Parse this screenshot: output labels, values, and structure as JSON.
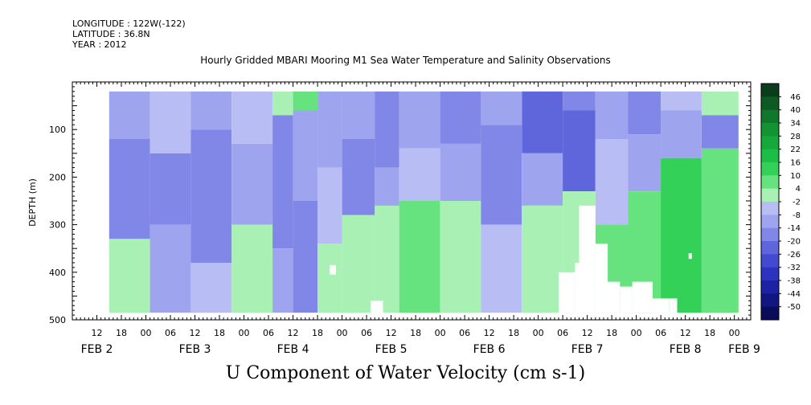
{
  "header": {
    "longitude": "LONGITUDE : 122W(-122)",
    "latitude": "LATITUDE : 36.8N",
    "year": "YEAR : 2012"
  },
  "chart_data": {
    "type": "heatmap",
    "title": "Hourly Gridded MBARI Mooring M1 Sea Water Temperature and Salinity Observations",
    "bottom_title": "U Component of Water Velocity (cm s-1)",
    "ylabel": "DEPTH (m)",
    "xlabel": "",
    "ylim": [
      500,
      0
    ],
    "y_ticks": [
      "100",
      "200",
      "300",
      "400",
      "500"
    ],
    "y_tick_values": [
      100,
      200,
      300,
      400,
      500
    ],
    "x_range_hours": [
      6,
      172
    ],
    "x_hour_ticks": [
      {
        "h": 12,
        "label": "12"
      },
      {
        "h": 18,
        "label": "18"
      },
      {
        "h": 24,
        "label": "00"
      },
      {
        "h": 30,
        "label": "06"
      },
      {
        "h": 36,
        "label": "12"
      },
      {
        "h": 42,
        "label": "18"
      },
      {
        "h": 48,
        "label": "00"
      },
      {
        "h": 54,
        "label": "06"
      },
      {
        "h": 60,
        "label": "12"
      },
      {
        "h": 66,
        "label": "18"
      },
      {
        "h": 72,
        "label": "00"
      },
      {
        "h": 78,
        "label": "06"
      },
      {
        "h": 84,
        "label": "12"
      },
      {
        "h": 90,
        "label": "18"
      },
      {
        "h": 96,
        "label": "00"
      },
      {
        "h": 102,
        "label": "06"
      },
      {
        "h": 108,
        "label": "12"
      },
      {
        "h": 114,
        "label": "18"
      },
      {
        "h": 120,
        "label": "00"
      },
      {
        "h": 126,
        "label": "06"
      },
      {
        "h": 132,
        "label": "12"
      },
      {
        "h": 138,
        "label": "18"
      },
      {
        "h": 144,
        "label": "00"
      },
      {
        "h": 150,
        "label": "06"
      },
      {
        "h": 156,
        "label": "12"
      },
      {
        "h": 162,
        "label": "18"
      },
      {
        "h": 168,
        "label": "00"
      },
      {
        "h": 174,
        "label": "06"
      }
    ],
    "date_labels": [
      {
        "h": 12,
        "label": "FEB  2"
      },
      {
        "h": 36,
        "label": "FEB  3"
      },
      {
        "h": 60,
        "label": "FEB  4"
      },
      {
        "h": 84,
        "label": "FEB  5"
      },
      {
        "h": 108,
        "label": "FEB  6"
      },
      {
        "h": 132,
        "label": "FEB  7"
      },
      {
        "h": 156,
        "label": "FEB  8"
      },
      {
        "h": 173,
        "label": "FEB  9"
      }
    ],
    "data_hours": [
      15,
      169
    ],
    "data_depth_range": [
      20,
      485
    ],
    "colorbar_labels": [
      "46",
      "40",
      "34",
      "28",
      "22",
      "16",
      "10",
      "4",
      "-2",
      "-8",
      "-14",
      "-20",
      "-26",
      "-32",
      "-38",
      "-44",
      "-50"
    ],
    "colorbar_levels": [
      52,
      46,
      40,
      34,
      28,
      22,
      16,
      10,
      4,
      -2,
      -8,
      -14,
      -20,
      -26,
      -32,
      -38,
      -44,
      -50
    ],
    "colorbar_colors": [
      "#0b3d1b",
      "#0e5a23",
      "#10782b",
      "#139433",
      "#16a83b",
      "#1cbe45",
      "#34d158",
      "#66e27f",
      "#a8f0b4",
      "#b8bdf4",
      "#9ea4ee",
      "#8087e6",
      "#5f66dc",
      "#434ad2",
      "#2c33c0",
      "#1d22a4",
      "#121680",
      "#0a0c5a"
    ],
    "columns": [
      {
        "h": [
          15,
          25
        ],
        "zones": [
          [
            20,
            120,
            -8
          ],
          [
            120,
            330,
            -14
          ],
          [
            330,
            485,
            4
          ]
        ]
      },
      {
        "h": [
          25,
          35
        ],
        "zones": [
          [
            20,
            150,
            -2
          ],
          [
            150,
            300,
            -14
          ],
          [
            300,
            485,
            -8
          ]
        ]
      },
      {
        "h": [
          35,
          45
        ],
        "zones": [
          [
            20,
            100,
            -8
          ],
          [
            100,
            380,
            -14
          ],
          [
            380,
            485,
            -2
          ]
        ]
      },
      {
        "h": [
          45,
          55
        ],
        "zones": [
          [
            20,
            130,
            -2
          ],
          [
            130,
            300,
            -8
          ],
          [
            300,
            485,
            4
          ]
        ]
      },
      {
        "h": [
          55,
          60
        ],
        "zones": [
          [
            20,
            70,
            4
          ],
          [
            70,
            350,
            -14
          ],
          [
            350,
            485,
            -8
          ]
        ]
      },
      {
        "h": [
          60,
          66
        ],
        "zones": [
          [
            20,
            60,
            10
          ],
          [
            60,
            250,
            -8
          ],
          [
            250,
            485,
            -14
          ]
        ]
      },
      {
        "h": [
          66,
          72
        ],
        "zones": [
          [
            20,
            180,
            -8
          ],
          [
            180,
            340,
            -2
          ],
          [
            340,
            485,
            4
          ]
        ]
      },
      {
        "h": [
          72,
          80
        ],
        "zones": [
          [
            20,
            120,
            -8
          ],
          [
            120,
            280,
            -14
          ],
          [
            280,
            485,
            4
          ]
        ]
      },
      {
        "h": [
          80,
          86
        ],
        "zones": [
          [
            20,
            180,
            -14
          ],
          [
            180,
            260,
            -8
          ],
          [
            260,
            485,
            4
          ]
        ]
      },
      {
        "h": [
          86,
          96
        ],
        "zones": [
          [
            20,
            140,
            -8
          ],
          [
            140,
            250,
            -2
          ],
          [
            250,
            485,
            10
          ]
        ]
      },
      {
        "h": [
          96,
          106
        ],
        "zones": [
          [
            20,
            130,
            -14
          ],
          [
            130,
            250,
            -8
          ],
          [
            250,
            485,
            4
          ]
        ]
      },
      {
        "h": [
          106,
          116
        ],
        "zones": [
          [
            20,
            90,
            -8
          ],
          [
            90,
            300,
            -14
          ],
          [
            300,
            485,
            -2
          ]
        ]
      },
      {
        "h": [
          116,
          126
        ],
        "zones": [
          [
            20,
            150,
            -20
          ],
          [
            150,
            260,
            -8
          ],
          [
            260,
            485,
            4
          ]
        ]
      },
      {
        "h": [
          126,
          134
        ],
        "zones": [
          [
            20,
            60,
            -14
          ],
          [
            60,
            230,
            -20
          ],
          [
            230,
            485,
            4
          ]
        ]
      },
      {
        "h": [
          134,
          142
        ],
        "zones": [
          [
            20,
            120,
            -8
          ],
          [
            120,
            300,
            -2
          ],
          [
            300,
            485,
            10
          ]
        ]
      },
      {
        "h": [
          142,
          150
        ],
        "zones": [
          [
            20,
            110,
            -14
          ],
          [
            110,
            230,
            -8
          ],
          [
            230,
            485,
            10
          ]
        ]
      },
      {
        "h": [
          150,
          160
        ],
        "zones": [
          [
            20,
            60,
            -2
          ],
          [
            60,
            160,
            -8
          ],
          [
            160,
            485,
            16
          ]
        ]
      },
      {
        "h": [
          160,
          169
        ],
        "zones": [
          [
            20,
            70,
            4
          ],
          [
            70,
            140,
            -14
          ],
          [
            140,
            485,
            10
          ]
        ]
      }
    ],
    "missing": [
      {
        "h": [
          79,
          82
        ],
        "d": [
          460,
          485
        ]
      },
      {
        "h": [
          125,
          129
        ],
        "d": [
          400,
          485
        ]
      },
      {
        "h": [
          129,
          130
        ],
        "d": [
          380,
          485
        ]
      },
      {
        "h": [
          130,
          134
        ],
        "d": [
          260,
          485
        ]
      },
      {
        "h": [
          134,
          137
        ],
        "d": [
          340,
          485
        ]
      },
      {
        "h": [
          137,
          140
        ],
        "d": [
          420,
          485
        ]
      },
      {
        "h": [
          140,
          143
        ],
        "d": [
          430,
          485
        ]
      },
      {
        "h": [
          143,
          148
        ],
        "d": [
          420,
          485
        ]
      },
      {
        "h": [
          148,
          152
        ],
        "d": [
          455,
          485
        ]
      },
      {
        "h": [
          152,
          154
        ],
        "d": [
          455,
          485
        ]
      },
      {
        "h": [
          69,
          70.5
        ],
        "d": [
          385,
          405
        ]
      },
      {
        "h": [
          156.8,
          157.6
        ],
        "d": [
          360,
          372
        ]
      }
    ]
  }
}
